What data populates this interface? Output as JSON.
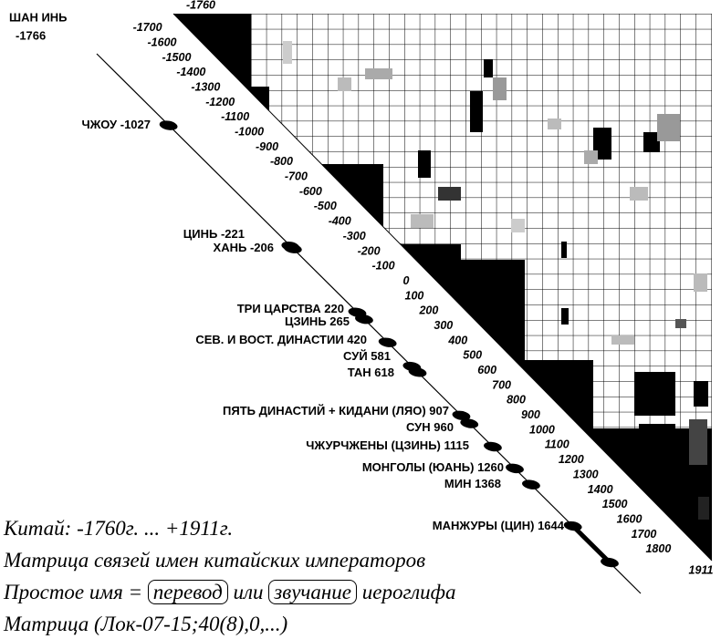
{
  "corner_label": {
    "name": "ШАН ИНЬ",
    "year": "-1766"
  },
  "axis_ticks": [
    -1760,
    -1700,
    -1600,
    -1500,
    -1400,
    -1300,
    -1200,
    -1100,
    -1000,
    -900,
    -800,
    -700,
    -600,
    -500,
    -400,
    -300,
    -200,
    -100,
    0,
    100,
    200,
    300,
    400,
    500,
    600,
    700,
    800,
    900,
    1000,
    1100,
    1200,
    1300,
    1400,
    1500,
    1600,
    1700,
    1800,
    1911
  ],
  "dynasties": [
    {
      "name": "ЧЖОУ",
      "year": -1027
    },
    {
      "name": "ЦИНЬ",
      "year": -221
    },
    {
      "name": "ХАНЬ",
      "year": -206
    },
    {
      "name": "ТРИ ЦАРСТВА",
      "year": 220
    },
    {
      "name": "ЦЗИНЬ",
      "year": 265
    },
    {
      "name": "СЕВ. И ВОСТ. ДИНАСТИИ",
      "year": 420
    },
    {
      "name": "СУЙ",
      "year": 581
    },
    {
      "name": "ТАН",
      "year": 618
    },
    {
      "name": "ПЯТЬ  ДИНАСТИЙ + КИДАНИ (ЛЯО)",
      "year": 907
    },
    {
      "name": "СУН",
      "year": 960
    },
    {
      "name": "ЧЖУРЧЖЕНЫ (ЦЗИНЬ)",
      "year": 1115
    },
    {
      "name": "МОНГОЛЫ (ЮАНЬ)",
      "year": 1260
    },
    {
      "name": "МИН",
      "year": 1368
    },
    {
      "name": "МАНЖУРЫ (ЦИН)",
      "year": 1644
    }
  ],
  "caption": {
    "line1": "Китай: -1760г. ... +1911г.",
    "line2": "Матрица связей имен китайских императоров",
    "line3_start": "Простое имя =",
    "boxed1": "перевод",
    "or": "или",
    "boxed2": "звучание",
    "line3_end": "иероглифа",
    "line4": "Матрица (Лок-07-15;40(8),0,...)"
  }
}
